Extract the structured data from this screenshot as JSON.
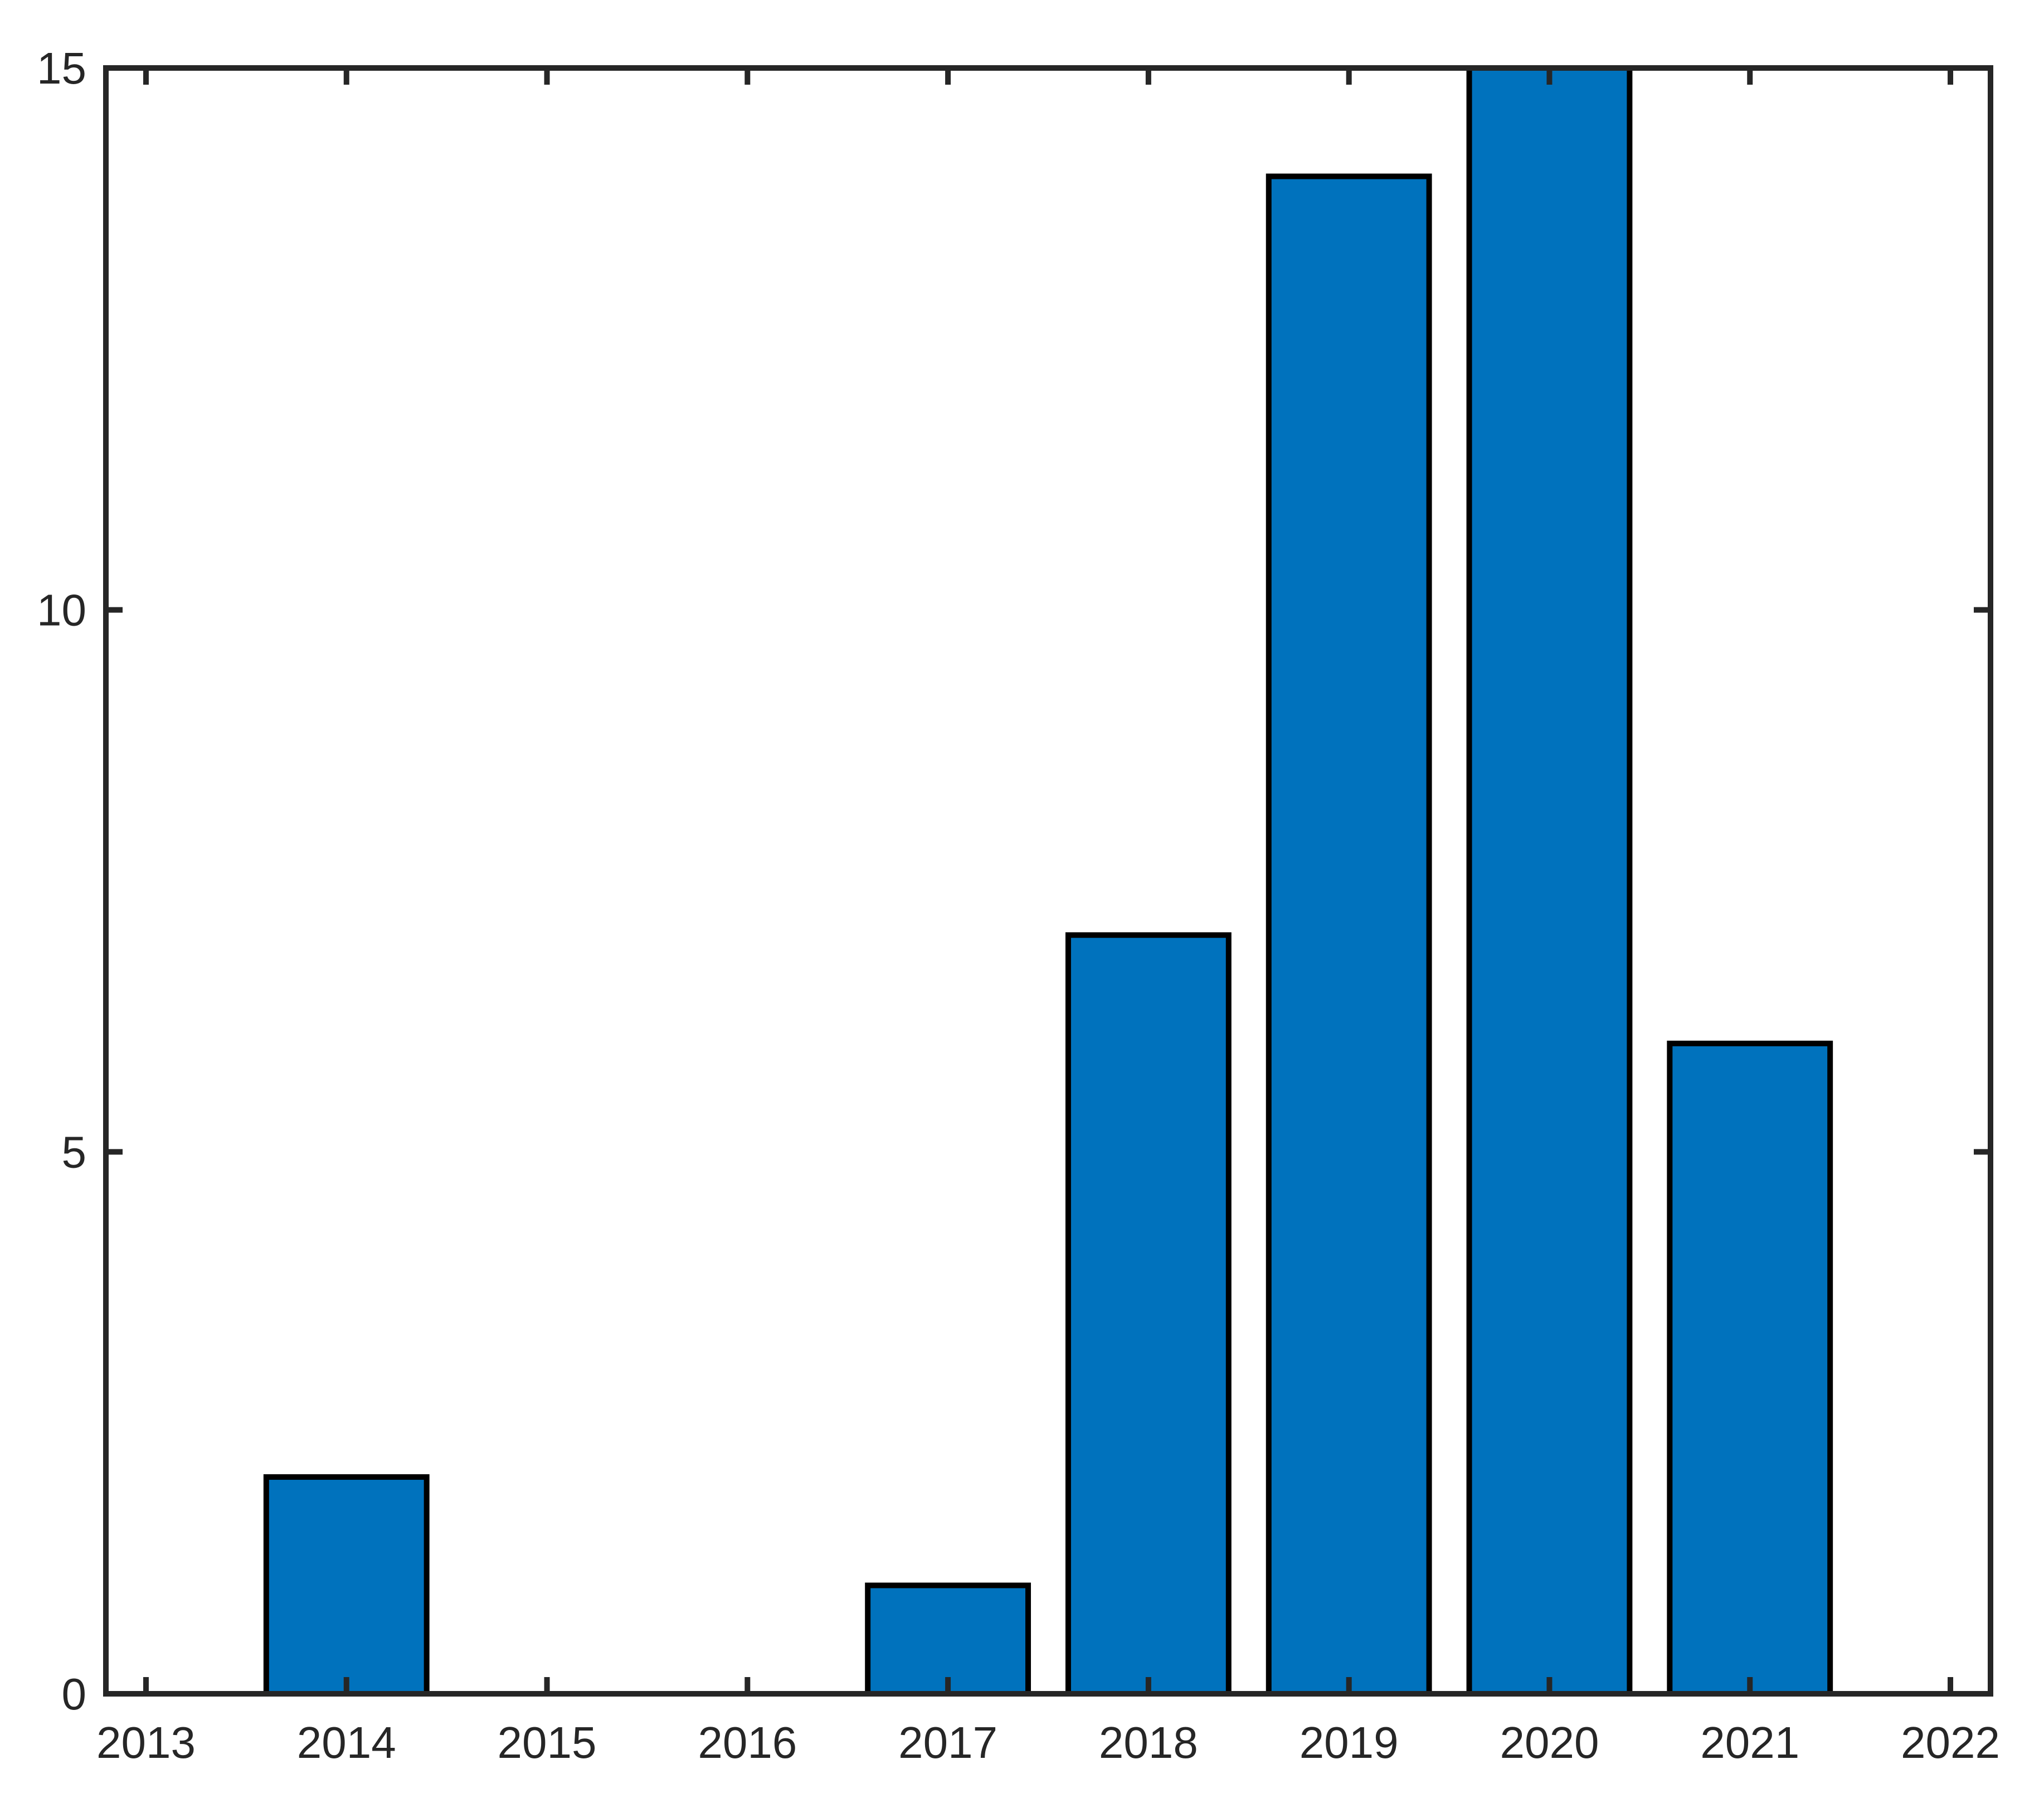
{
  "chart_data": {
    "type": "bar",
    "title": "",
    "xlabel": "",
    "ylabel": "",
    "x": [
      2014,
      2015,
      2016,
      2017,
      2018,
      2019,
      2020,
      2021
    ],
    "values": [
      2,
      0,
      0,
      1,
      7,
      14,
      15,
      6
    ],
    "xticks": [
      2013,
      2014,
      2015,
      2016,
      2017,
      2018,
      2019,
      2020,
      2021,
      2022
    ],
    "yticks": [
      0,
      5,
      10,
      15
    ],
    "xlim": [
      2012.8,
      2022.2
    ],
    "ylim": [
      0,
      15
    ],
    "bar_width": 0.8,
    "bar_color": "#0072BD",
    "bar_edge_color": "#000000",
    "axis_color": "#262626",
    "tick_label_color": "#262626",
    "background": "#FFFFFF",
    "grid": false,
    "legend": null,
    "box": true,
    "tick_direction": "in"
  }
}
